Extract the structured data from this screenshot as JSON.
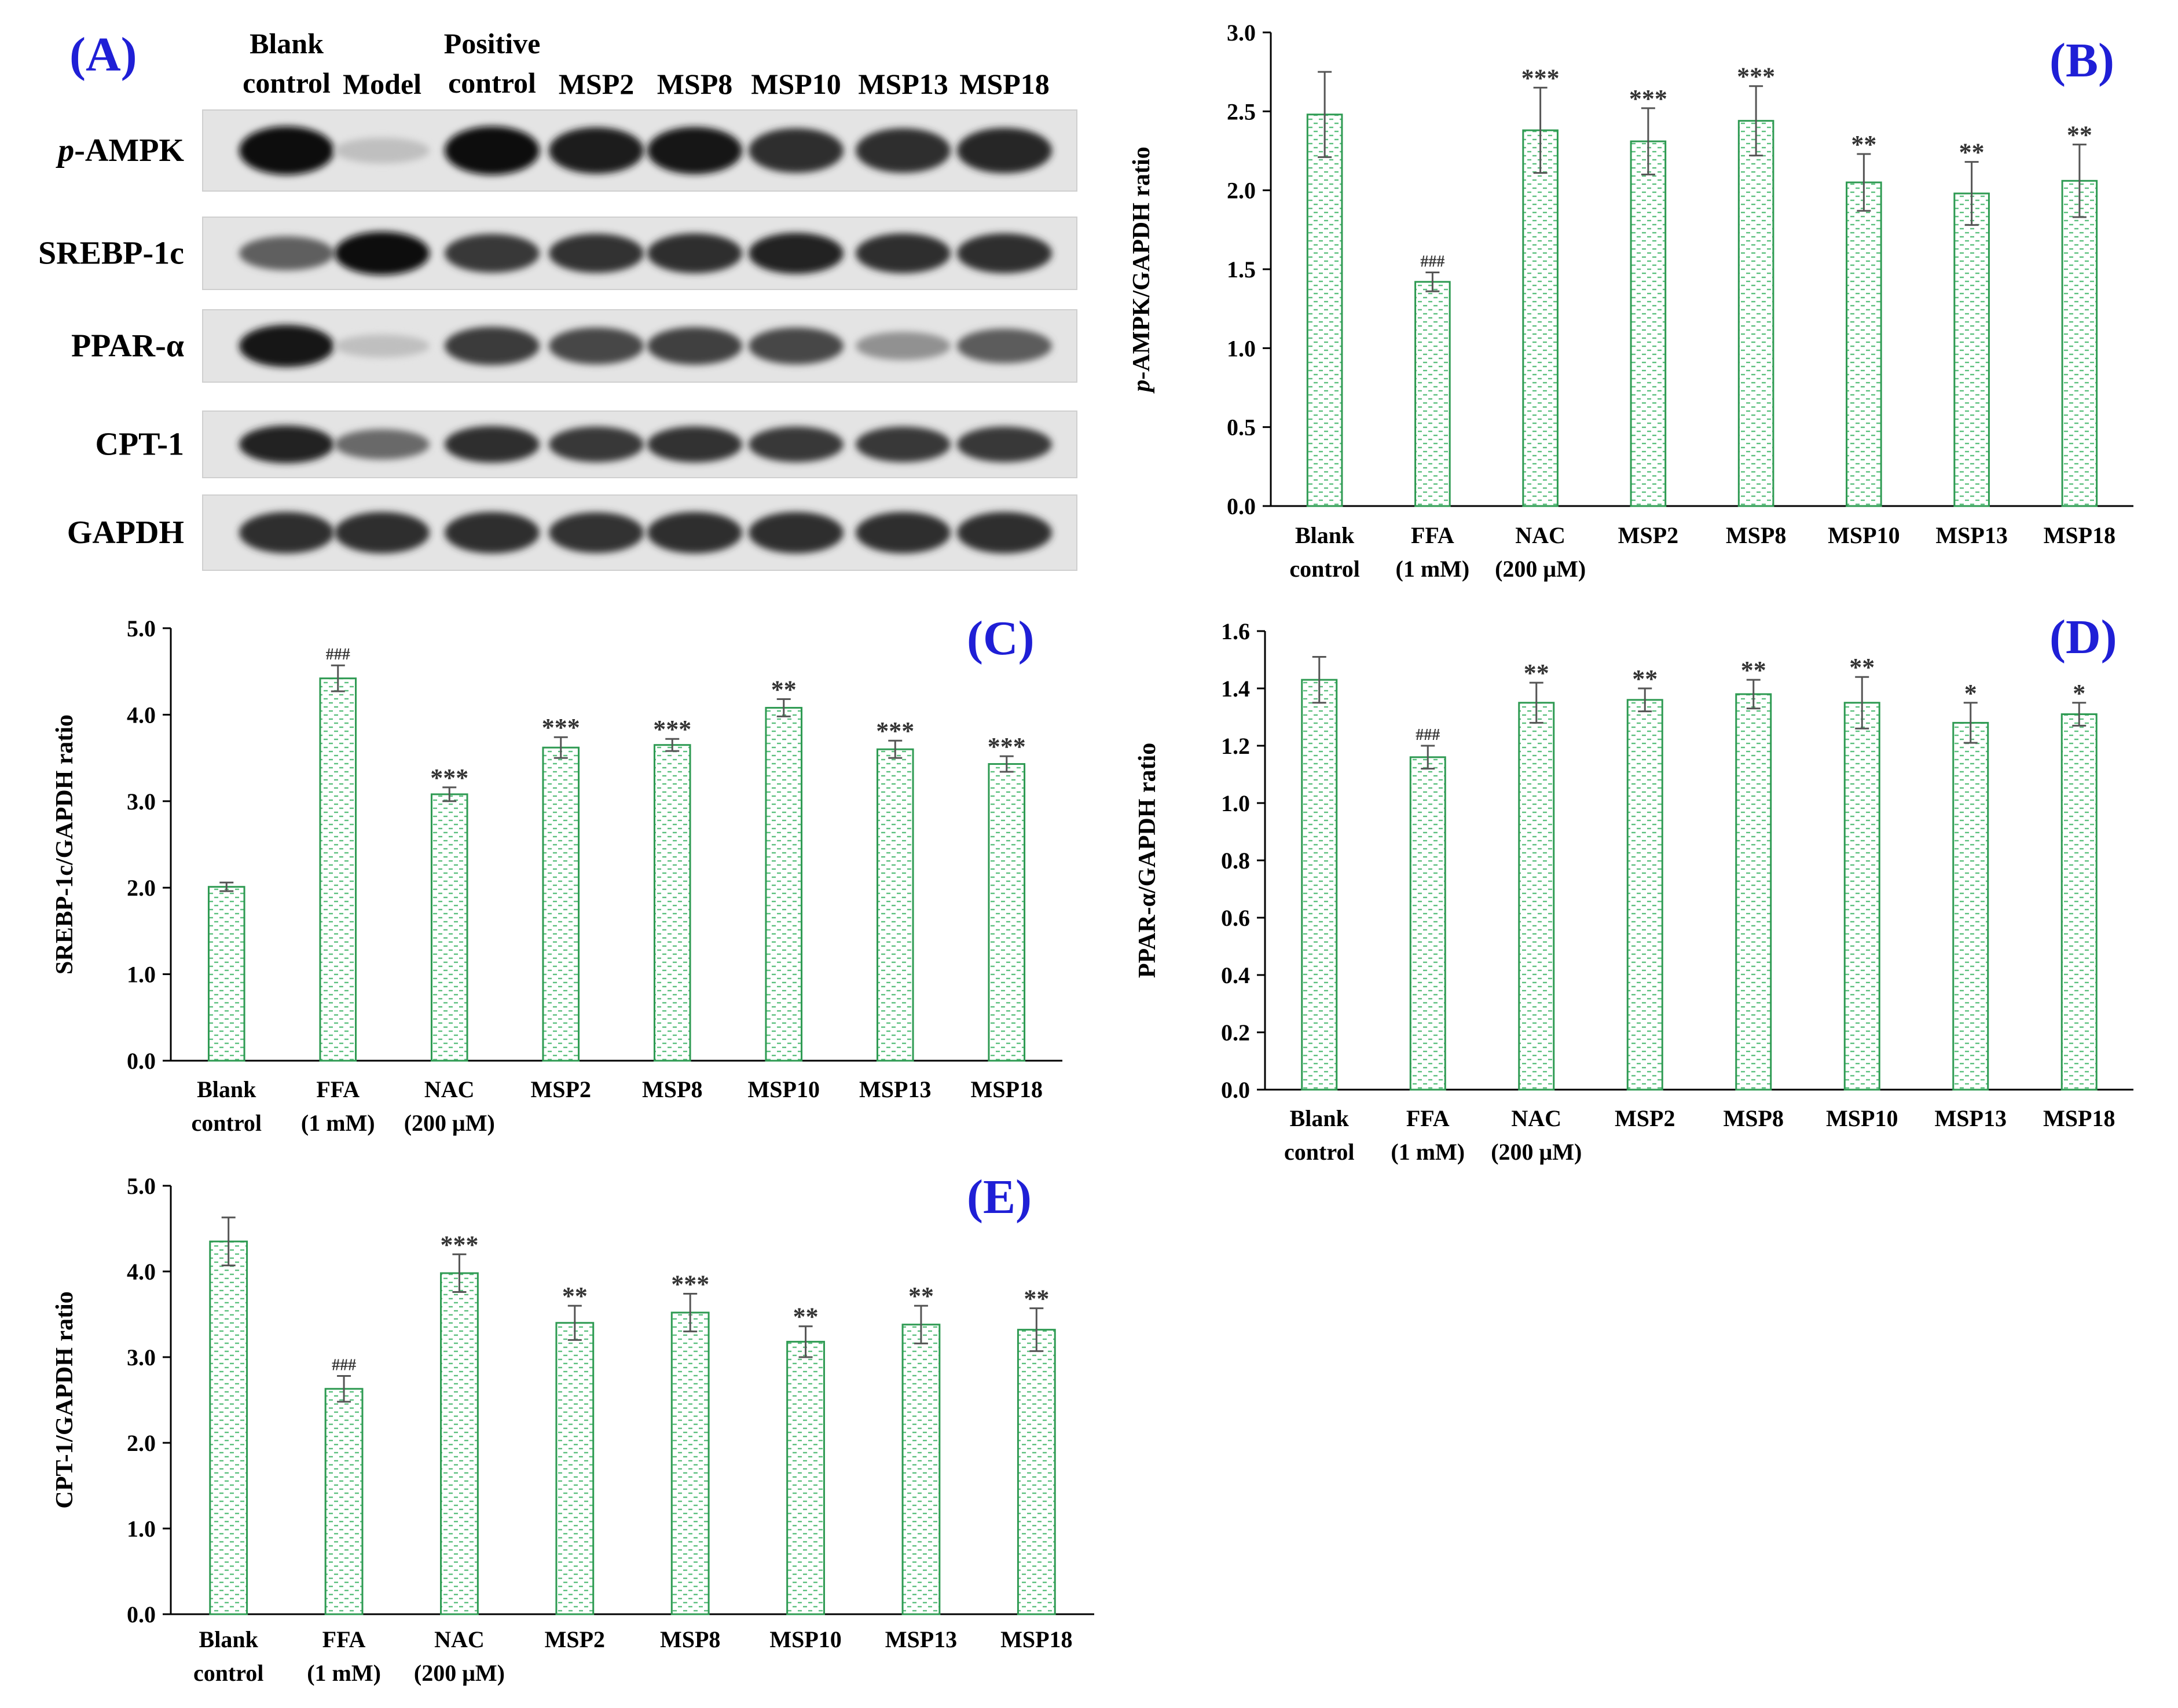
{
  "colors": {
    "bar_border": "#2e9a52",
    "bar_dot": "#5cc07e",
    "panel_label": "#1f1fd6",
    "error_bar": "#555555"
  },
  "blot_panel": {
    "label": "(A)",
    "lane_headers": [
      {
        "lines": [
          "Blank",
          "control"
        ]
      },
      {
        "lines": [
          "Model"
        ]
      },
      {
        "lines": [
          "Positive",
          "control"
        ]
      },
      {
        "lines": [
          "MSP2"
        ]
      },
      {
        "lines": [
          "MSP8"
        ]
      },
      {
        "lines": [
          "MSP10"
        ]
      },
      {
        "lines": [
          "MSP13"
        ]
      },
      {
        "lines": [
          "MSP18"
        ]
      }
    ],
    "rows": [
      {
        "label_prefix": "p",
        "label_rest": "-AMPK",
        "intensity": [
          1.0,
          0.12,
          1.0,
          0.92,
          0.95,
          0.85,
          0.85,
          0.88
        ]
      },
      {
        "label_prefix": "",
        "label_rest": "SREBP-1c",
        "intensity": [
          0.6,
          1.0,
          0.8,
          0.82,
          0.85,
          0.9,
          0.85,
          0.85
        ]
      },
      {
        "label_prefix": "",
        "label_rest": "PPAR-α",
        "intensity": [
          0.95,
          0.12,
          0.78,
          0.72,
          0.75,
          0.72,
          0.35,
          0.62
        ]
      },
      {
        "label_prefix": "",
        "label_rest": "CPT-1",
        "intensity": [
          0.9,
          0.55,
          0.85,
          0.8,
          0.82,
          0.8,
          0.8,
          0.8
        ]
      },
      {
        "label_prefix": "",
        "label_rest": "GAPDH",
        "intensity": [
          0.85,
          0.85,
          0.85,
          0.82,
          0.85,
          0.85,
          0.85,
          0.85
        ]
      }
    ]
  },
  "chart_data": [
    {
      "type": "bar",
      "panel": "(B)",
      "ylabel_prefix": "p",
      "ylabel_rest": "-AMPK/GAPDH ratio",
      "ylim": [
        0,
        3.0
      ],
      "yticks": [
        "0.0",
        "0.5",
        "1.0",
        "1.5",
        "2.0",
        "2.5",
        "3.0"
      ],
      "categories": [
        [
          "Blank",
          "control"
        ],
        [
          "FFA",
          "(1 mM)"
        ],
        [
          "NAC",
          "(200 μM)"
        ],
        [
          "MSP2"
        ],
        [
          "MSP8"
        ],
        [
          "MSP10"
        ],
        [
          "MSP13"
        ],
        [
          "MSP18"
        ]
      ],
      "values": [
        2.48,
        1.42,
        2.38,
        2.31,
        2.44,
        2.05,
        1.98,
        2.06
      ],
      "errors": [
        0.27,
        0.06,
        0.27,
        0.21,
        0.22,
        0.18,
        0.2,
        0.23
      ],
      "significance": [
        "",
        "###",
        "***",
        "***",
        "***",
        "**",
        "**",
        "**"
      ]
    },
    {
      "type": "bar",
      "panel": "(C)",
      "ylabel_prefix": "",
      "ylabel_rest": "SREBP-1c/GAPDH ratio",
      "ylim": [
        0,
        5.0
      ],
      "yticks": [
        "0.0",
        "1.0",
        "2.0",
        "3.0",
        "4.0",
        "5.0"
      ],
      "categories": [
        [
          "Blank",
          "control"
        ],
        [
          "FFA",
          "(1 mM)"
        ],
        [
          "NAC",
          "(200 μM)"
        ],
        [
          "MSP2"
        ],
        [
          "MSP8"
        ],
        [
          "MSP10"
        ],
        [
          "MSP13"
        ],
        [
          "MSP18"
        ]
      ],
      "values": [
        2.01,
        4.42,
        3.08,
        3.62,
        3.65,
        4.08,
        3.6,
        3.43
      ],
      "errors": [
        0.05,
        0.15,
        0.08,
        0.12,
        0.07,
        0.1,
        0.1,
        0.09
      ],
      "significance": [
        "",
        "###",
        "***",
        "***",
        "***",
        "**",
        "***",
        "***"
      ]
    },
    {
      "type": "bar",
      "panel": "(D)",
      "ylabel_prefix": "",
      "ylabel_rest": "PPAR-α/GAPDH ratio",
      "ylim": [
        0,
        1.6
      ],
      "yticks": [
        "0.0",
        "0.2",
        "0.4",
        "0.6",
        "0.8",
        "1.0",
        "1.2",
        "1.4",
        "1.6"
      ],
      "categories": [
        [
          "Blank",
          "control"
        ],
        [
          "FFA",
          "(1 mM)"
        ],
        [
          "NAC",
          "(200 μM)"
        ],
        [
          "MSP2"
        ],
        [
          "MSP8"
        ],
        [
          "MSP10"
        ],
        [
          "MSP13"
        ],
        [
          "MSP18"
        ]
      ],
      "values": [
        1.43,
        1.16,
        1.35,
        1.36,
        1.38,
        1.35,
        1.28,
        1.31
      ],
      "errors": [
        0.08,
        0.04,
        0.07,
        0.04,
        0.05,
        0.09,
        0.07,
        0.04
      ],
      "significance": [
        "",
        "###",
        "**",
        "**",
        "**",
        "**",
        "*",
        "*"
      ]
    },
    {
      "type": "bar",
      "panel": "(E)",
      "ylabel_prefix": "",
      "ylabel_rest": "CPT-1/GAPDH ratio",
      "ylim": [
        0,
        5.0
      ],
      "yticks": [
        "0.0",
        "1.0",
        "2.0",
        "3.0",
        "4.0",
        "5.0"
      ],
      "categories": [
        [
          "Blank",
          "control"
        ],
        [
          "FFA",
          "(1 mM)"
        ],
        [
          "NAC",
          "(200 μM)"
        ],
        [
          "MSP2"
        ],
        [
          "MSP8"
        ],
        [
          "MSP10"
        ],
        [
          "MSP13"
        ],
        [
          "MSP18"
        ]
      ],
      "values": [
        4.35,
        2.63,
        3.98,
        3.4,
        3.52,
        3.18,
        3.38,
        3.32
      ],
      "errors": [
        0.28,
        0.15,
        0.22,
        0.2,
        0.22,
        0.18,
        0.22,
        0.25
      ],
      "significance": [
        "",
        "###",
        "***",
        "**",
        "***",
        "**",
        "**",
        "**"
      ]
    }
  ]
}
